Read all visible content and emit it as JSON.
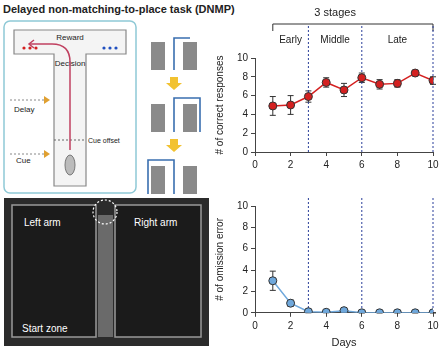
{
  "figure": {
    "title": "Delayed non-matching-to-place task (DNMP)",
    "schematic": {
      "reward": "Reward",
      "decision": "Decision",
      "delay": "Delay",
      "cue": "Cue",
      "cue_offset": "Cue offset"
    },
    "photo": {
      "left_arm": "Left arm",
      "right_arm": "Right arm",
      "start_zone": "Start zone"
    }
  },
  "stages": {
    "title": "3 stages",
    "names": [
      "Early",
      "Middle",
      "Late"
    ],
    "boundaries": [
      1,
      3,
      6,
      10
    ]
  },
  "chart_data": [
    {
      "type": "line",
      "y_label": "# of correct responses",
      "x": [
        1,
        2,
        3,
        4,
        5,
        6,
        7,
        8,
        9,
        10
      ],
      "values": [
        4.9,
        5.0,
        5.9,
        7.4,
        6.6,
        7.9,
        7.2,
        7.3,
        8.4,
        7.6
      ],
      "errors": [
        1.0,
        1.0,
        0.6,
        0.5,
        0.7,
        0.5,
        0.5,
        0.4,
        0.3,
        0.4
      ],
      "color": "#d42020",
      "marker": "circle",
      "grid": false,
      "xlim": [
        0,
        10
      ],
      "xticks": [
        0,
        2,
        4,
        6,
        8,
        10
      ],
      "ylim": [
        0,
        10
      ],
      "yticks": [
        0,
        2,
        4,
        6,
        8,
        10
      ],
      "vlines": [
        3,
        6,
        10
      ]
    },
    {
      "type": "line",
      "y_label": "# of omission error",
      "x_label": "Days",
      "x": [
        1,
        2,
        3,
        4,
        5,
        6,
        7,
        8,
        9,
        10
      ],
      "values": [
        3.0,
        0.9,
        0.1,
        0.05,
        0.2,
        0,
        0,
        0,
        0,
        0
      ],
      "errors": [
        0.9,
        0.3,
        0.1,
        0.05,
        0.1,
        0,
        0,
        0,
        0,
        0
      ],
      "color": "#6fa8dc",
      "marker": "circle",
      "grid": false,
      "xlim": [
        0,
        10
      ],
      "xticks": [
        0,
        2,
        4,
        6,
        8,
        10
      ],
      "ylim": [
        0,
        10
      ],
      "yticks": [
        0,
        2,
        4,
        6,
        8,
        10
      ],
      "vlines": [
        3,
        6,
        10
      ]
    }
  ]
}
